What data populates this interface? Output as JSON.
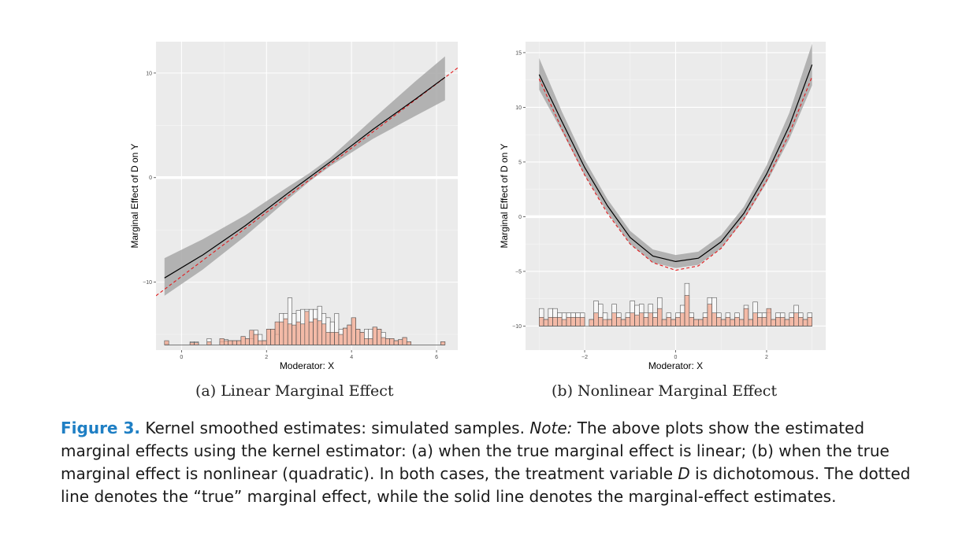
{
  "chart_data": [
    {
      "type": "line",
      "subcaption": "(a) Linear Marginal Effect",
      "xlabel": "Moderator: X",
      "ylabel": "Marginal Effect of D on Y",
      "xlim": [
        -0.6,
        6.5
      ],
      "ylim": [
        -16.5,
        13
      ],
      "xticks": [
        0,
        2,
        4,
        6
      ],
      "yticks": [
        -10,
        0,
        10
      ],
      "baseline": 0,
      "grid": true,
      "hist_base": -16.0,
      "series": [
        {
          "role": "estimate",
          "style": "solid",
          "color": "#000000",
          "x": [
            -0.4,
            0.5,
            1.5,
            2.5,
            3.0,
            3.5,
            4.5,
            5.5,
            6.2
          ],
          "y": [
            -9.6,
            -7.4,
            -4.6,
            -1.5,
            0.0,
            1.5,
            4.6,
            7.5,
            9.6
          ]
        },
        {
          "role": "ci_upper",
          "x": [
            -0.4,
            0.5,
            1.5,
            2.5,
            3.0,
            3.5,
            4.5,
            5.5,
            6.2
          ],
          "y": [
            -7.7,
            -5.9,
            -3.6,
            -0.9,
            0.4,
            1.9,
            5.6,
            9.2,
            11.6
          ]
        },
        {
          "role": "ci_lower",
          "x": [
            -0.4,
            0.5,
            1.5,
            2.5,
            3.0,
            3.5,
            4.5,
            5.5,
            6.2
          ],
          "y": [
            -11.3,
            -8.8,
            -5.6,
            -2.1,
            -0.4,
            1.1,
            3.7,
            5.9,
            7.4
          ]
        },
        {
          "role": "true",
          "style": "dashed",
          "color": "#e31a1c",
          "x": [
            -0.6,
            6.5
          ],
          "y": [
            -11.3,
            10.5
          ]
        }
      ],
      "hist": {
        "binwidth": 0.1,
        "starts": [
          -0.4,
          0.2,
          0.3,
          0.6,
          0.9,
          1.0,
          1.1,
          1.2,
          1.3,
          1.4,
          1.5,
          1.6,
          1.7,
          1.8,
          1.9,
          2.0,
          2.1,
          2.2,
          2.3,
          2.4,
          2.5,
          2.6,
          2.7,
          2.8,
          2.9,
          3.0,
          3.1,
          3.2,
          3.3,
          3.4,
          3.5,
          3.6,
          3.7,
          3.8,
          3.9,
          4.0,
          4.1,
          4.2,
          4.3,
          4.4,
          4.5,
          4.6,
          4.7,
          4.8,
          4.9,
          5.0,
          5.1,
          5.2,
          5.3,
          6.1
        ],
        "group0": [
          0.1,
          0.3,
          0.3,
          0.6,
          0.3,
          0.5,
          0.4,
          0.4,
          0.4,
          0.8,
          0.6,
          0.6,
          1.4,
          1.0,
          0.4,
          1.5,
          1.5,
          1.0,
          3.0,
          3.0,
          4.5,
          3.0,
          3.3,
          3.4,
          3.4,
          3.4,
          3.4,
          3.7,
          3.0,
          2.6,
          2.2,
          3.0,
          1.5,
          1.6,
          1.9,
          2.6,
          1.5,
          1.2,
          1.5,
          1.5,
          1.7,
          1.5,
          1.2,
          0.6,
          0.6,
          0.4,
          0.5,
          0.7,
          0.3,
          0.3
        ],
        "group1": [
          0.4,
          0.2,
          0.2,
          0.3,
          0.6,
          0.4,
          0.4,
          0.4,
          0.4,
          0.8,
          0.6,
          1.4,
          1.0,
          0.4,
          0.4,
          1.5,
          1.5,
          2.2,
          2.2,
          2.5,
          2.0,
          1.9,
          2.2,
          2.0,
          3.2,
          2.2,
          2.5,
          2.3,
          2.0,
          1.2,
          1.2,
          1.2,
          1.0,
          1.6,
          1.9,
          2.6,
          1.5,
          1.2,
          0.6,
          0.6,
          1.7,
          1.5,
          0.7,
          0.6,
          0.6,
          0.4,
          0.5,
          0.7,
          0.3,
          0.3
        ]
      }
    },
    {
      "type": "line",
      "subcaption": "(b) Nonlinear Marginal Effect",
      "xlabel": "Moderator: X",
      "ylabel": "Marginal Effect of D on Y",
      "xlim": [
        -3.3,
        3.3
      ],
      "ylim": [
        -12.2,
        16
      ],
      "xticks": [
        -2,
        0,
        2
      ],
      "yticks": [
        -10,
        -5,
        0,
        5,
        10,
        15
      ],
      "baseline": 0,
      "grid": true,
      "hist_base": -10.0,
      "series": [
        {
          "role": "estimate",
          "style": "solid",
          "color": "#000000",
          "x": [
            -3.0,
            -2.5,
            -2.0,
            -1.5,
            -1.0,
            -0.5,
            0.0,
            0.5,
            1.0,
            1.5,
            2.0,
            2.5,
            3.0
          ],
          "y": [
            13.0,
            8.7,
            4.5,
            1.0,
            -1.9,
            -3.6,
            -4.1,
            -3.8,
            -2.3,
            0.3,
            3.9,
            8.3,
            13.9
          ]
        },
        {
          "role": "ci_upper",
          "x": [
            -3.0,
            -2.5,
            -2.0,
            -1.5,
            -1.0,
            -0.5,
            0.0,
            0.5,
            1.0,
            1.5,
            2.0,
            2.5,
            3.0
          ],
          "y": [
            14.5,
            9.6,
            5.2,
            1.6,
            -1.3,
            -3.0,
            -3.5,
            -3.2,
            -1.7,
            0.9,
            4.7,
            9.5,
            15.8
          ]
        },
        {
          "role": "ci_lower",
          "x": [
            -3.0,
            -2.5,
            -2.0,
            -1.5,
            -1.0,
            -0.5,
            0.0,
            0.5,
            1.0,
            1.5,
            2.0,
            2.5,
            3.0
          ],
          "y": [
            11.6,
            7.8,
            3.8,
            0.4,
            -2.5,
            -4.2,
            -4.7,
            -4.4,
            -2.9,
            -0.3,
            3.1,
            7.1,
            12.0
          ]
        },
        {
          "role": "true",
          "style": "dashed",
          "color": "#e31a1c",
          "x": [
            -3.0,
            -2.5,
            -2.0,
            -1.5,
            -1.0,
            -0.5,
            0.0,
            0.5,
            1.0,
            1.5,
            2.0,
            2.5,
            3.0
          ],
          "y": [
            12.6,
            8.0,
            3.8,
            0.3,
            -2.5,
            -4.2,
            -4.9,
            -4.5,
            -2.9,
            -0.2,
            3.3,
            7.6,
            12.8
          ]
        }
      ],
      "hist": {
        "binwidth": 0.1,
        "starts": [
          -3.0,
          -2.9,
          -2.8,
          -2.7,
          -2.6,
          -2.5,
          -2.4,
          -2.3,
          -2.2,
          -2.1,
          -2.0,
          -1.9,
          -1.8,
          -1.7,
          -1.6,
          -1.5,
          -1.4,
          -1.3,
          -1.2,
          -1.1,
          -1.0,
          -0.9,
          -0.8,
          -0.7,
          -0.6,
          -0.5,
          -0.4,
          -0.3,
          -0.2,
          -0.1,
          0.0,
          0.1,
          0.2,
          0.3,
          0.4,
          0.5,
          0.6,
          0.7,
          0.8,
          0.9,
          1.0,
          1.1,
          1.2,
          1.3,
          1.4,
          1.5,
          1.6,
          1.7,
          1.8,
          1.9,
          2.0,
          2.1,
          2.2,
          2.3,
          2.4,
          2.5,
          2.6,
          2.7,
          2.8,
          2.9
        ],
        "group0": [
          1.6,
          0.6,
          1.6,
          1.6,
          1.2,
          1.2,
          1.2,
          1.2,
          1.2,
          1.2,
          0.0,
          0.6,
          2.3,
          2.0,
          1.2,
          0.6,
          2.0,
          1.2,
          0.6,
          1.2,
          2.3,
          1.9,
          2.0,
          1.2,
          2.0,
          1.2,
          2.6,
          0.6,
          1.2,
          0.6,
          1.2,
          1.9,
          3.9,
          1.2,
          0.6,
          0.6,
          1.2,
          2.6,
          2.6,
          1.2,
          0.6,
          1.2,
          0.6,
          1.2,
          0.6,
          1.9,
          0.6,
          2.2,
          1.2,
          1.2,
          1.2,
          0.6,
          1.2,
          1.2,
          0.6,
          1.2,
          1.9,
          1.2,
          0.6,
          1.2
        ],
        "group1": [
          0.8,
          0.6,
          0.8,
          0.8,
          0.8,
          0.6,
          0.8,
          0.8,
          0.8,
          0.8,
          0.0,
          0.6,
          1.2,
          0.8,
          0.6,
          0.6,
          1.2,
          0.8,
          0.6,
          0.8,
          1.2,
          1.0,
          1.2,
          0.8,
          1.2,
          0.8,
          1.6,
          0.6,
          0.8,
          0.6,
          0.8,
          1.2,
          2.8,
          0.8,
          0.6,
          0.6,
          0.8,
          2.0,
          1.2,
          0.8,
          0.6,
          0.8,
          0.6,
          0.8,
          0.6,
          1.6,
          0.6,
          1.2,
          0.8,
          0.8,
          1.6,
          0.6,
          0.8,
          0.8,
          0.6,
          0.8,
          1.2,
          0.8,
          0.6,
          0.8
        ]
      }
    }
  ],
  "caption": {
    "label": "Figure 3.",
    "text1": " Kernel smoothed estimates: simulated samples. ",
    "note_label": "Note:",
    "text2": " The above plots show the estimated marginal effects using the kernel estimator: (a) when the true marginal effect is linear; (b) when the true marginal effect is nonlinear (quadratic). In both cases, the treatment variable ",
    "var_d": "D",
    "text3": " is dichotomous. The dotted line denotes the “true” marginal effect, while the solid line denotes the marginal-effect estimates."
  }
}
